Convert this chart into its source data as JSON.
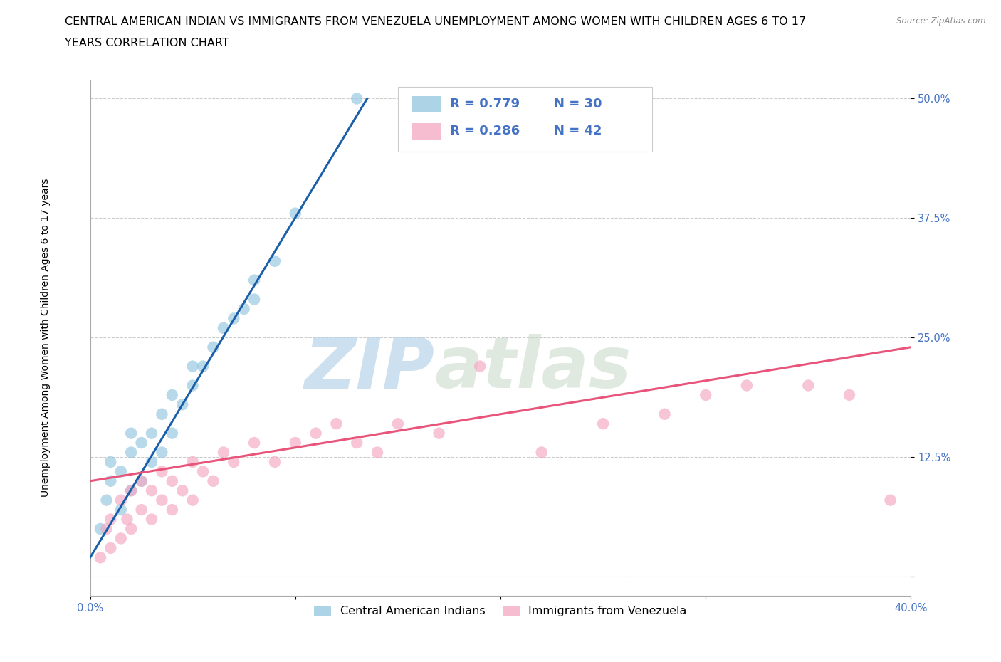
{
  "title_line1": "CENTRAL AMERICAN INDIAN VS IMMIGRANTS FROM VENEZUELA UNEMPLOYMENT AMONG WOMEN WITH CHILDREN AGES 6 TO 17",
  "title_line2": "YEARS CORRELATION CHART",
  "source": "Source: ZipAtlas.com",
  "ylabel": "Unemployment Among Women with Children Ages 6 to 17 years",
  "xlim": [
    0.0,
    0.4
  ],
  "ylim": [
    -0.02,
    0.52
  ],
  "xticks": [
    0.0,
    0.1,
    0.2,
    0.3,
    0.4
  ],
  "xticklabels": [
    "0.0%",
    "",
    "",
    "",
    "40.0%"
  ],
  "yticks": [
    0.0,
    0.125,
    0.25,
    0.375,
    0.5
  ],
  "yticklabels": [
    "",
    "12.5%",
    "25.0%",
    "37.5%",
    "50.0%"
  ],
  "watermark_zip": "ZIP",
  "watermark_atlas": "atlas",
  "color_blue": "#92c5de",
  "color_pink": "#f4a6c0",
  "color_blue_line": "#1a5fa8",
  "color_pink_line": "#e8547a",
  "blue_scatter_x": [
    0.005,
    0.008,
    0.01,
    0.01,
    0.015,
    0.015,
    0.02,
    0.02,
    0.02,
    0.025,
    0.025,
    0.03,
    0.03,
    0.035,
    0.035,
    0.04,
    0.04,
    0.045,
    0.05,
    0.05,
    0.055,
    0.06,
    0.065,
    0.07,
    0.075,
    0.08,
    0.08,
    0.09,
    0.1,
    0.13
  ],
  "blue_scatter_y": [
    0.05,
    0.08,
    0.1,
    0.12,
    0.07,
    0.11,
    0.09,
    0.13,
    0.15,
    0.1,
    0.14,
    0.12,
    0.15,
    0.13,
    0.17,
    0.15,
    0.19,
    0.18,
    0.2,
    0.22,
    0.22,
    0.24,
    0.26,
    0.27,
    0.28,
    0.29,
    0.31,
    0.33,
    0.38,
    0.5
  ],
  "pink_scatter_x": [
    0.005,
    0.008,
    0.01,
    0.01,
    0.015,
    0.015,
    0.018,
    0.02,
    0.02,
    0.025,
    0.025,
    0.03,
    0.03,
    0.035,
    0.035,
    0.04,
    0.04,
    0.045,
    0.05,
    0.05,
    0.055,
    0.06,
    0.065,
    0.07,
    0.08,
    0.09,
    0.1,
    0.11,
    0.12,
    0.13,
    0.14,
    0.15,
    0.17,
    0.19,
    0.22,
    0.25,
    0.28,
    0.3,
    0.32,
    0.35,
    0.37,
    0.39
  ],
  "pink_scatter_y": [
    0.02,
    0.05,
    0.03,
    0.06,
    0.04,
    0.08,
    0.06,
    0.05,
    0.09,
    0.07,
    0.1,
    0.06,
    0.09,
    0.08,
    0.11,
    0.07,
    0.1,
    0.09,
    0.08,
    0.12,
    0.11,
    0.1,
    0.13,
    0.12,
    0.14,
    0.12,
    0.14,
    0.15,
    0.16,
    0.14,
    0.13,
    0.16,
    0.15,
    0.22,
    0.13,
    0.16,
    0.17,
    0.19,
    0.2,
    0.2,
    0.19,
    0.08
  ],
  "blue_line_x": [
    0.0,
    0.135
  ],
  "blue_line_y": [
    0.02,
    0.5
  ],
  "pink_line_x": [
    0.0,
    0.4
  ],
  "pink_line_y": [
    0.1,
    0.24
  ],
  "legend1_label": "Central American Indians",
  "legend2_label": "Immigrants from Venezuela",
  "title_fontsize": 11.5,
  "axis_fontsize": 10,
  "tick_fontsize": 10.5
}
